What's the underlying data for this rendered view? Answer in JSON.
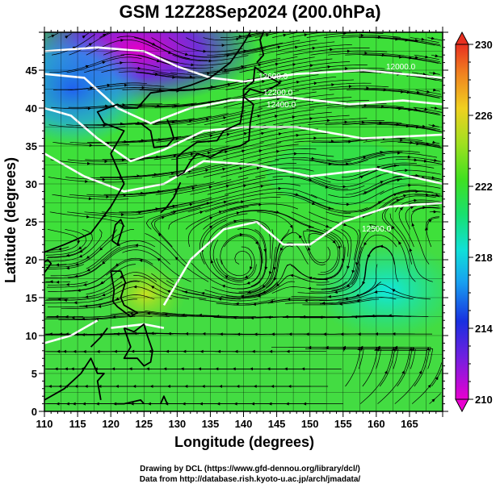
{
  "title": "GSM 12Z28Sep2024 (200.0hPa)",
  "x_axis": {
    "label": "Longitude (degrees)",
    "range": [
      110,
      170
    ],
    "ticks": [
      110,
      115,
      120,
      125,
      130,
      135,
      140,
      145,
      150,
      155,
      160,
      165
    ]
  },
  "y_axis": {
    "label": "Latitude  (degrees)",
    "range": [
      0,
      50
    ],
    "ticks": [
      0,
      5,
      10,
      15,
      20,
      25,
      30,
      35,
      40,
      45
    ]
  },
  "colorbar": {
    "ticks": [
      210,
      214,
      218,
      222,
      226,
      230
    ],
    "range": [
      210,
      230
    ]
  },
  "contour_labels": [
    "12600.0",
    "12200.0",
    "12400.0",
    "12000.0",
    "12500.0"
  ],
  "credits": {
    "line1": "Drawing by DCL (https://www.gfd-dennou.org/library/dcl/)",
    "line2": "Data from http://database.rish.kyoto-u.ac.jp/arch/jmadata/"
  },
  "colors": {
    "background": "#ffffff",
    "grid": "#000000",
    "contour": "#ffffff",
    "coast": "#000000"
  }
}
